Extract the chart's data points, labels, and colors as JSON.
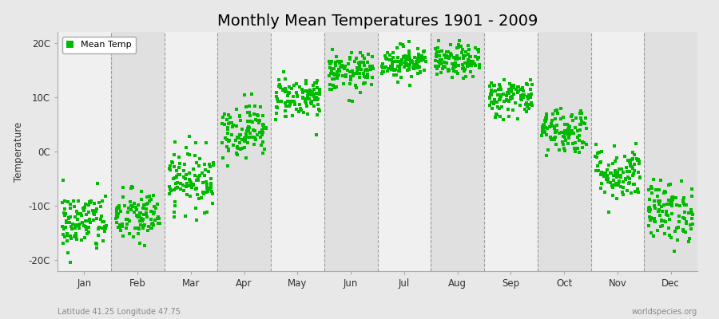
{
  "title": "Monthly Mean Temperatures 1901 - 2009",
  "ylabel": "Temperature",
  "ytick_labels": [
    "20C",
    "10C",
    "0C",
    "-10C",
    "-20C"
  ],
  "ytick_values": [
    20,
    10,
    0,
    -10,
    -20
  ],
  "ylim": [
    -22,
    22
  ],
  "months": [
    "Jan",
    "Feb",
    "Mar",
    "Apr",
    "May",
    "Jun",
    "Jul",
    "Aug",
    "Sep",
    "Oct",
    "Nov",
    "Dec"
  ],
  "month_centers": [
    0.5,
    1.5,
    2.5,
    3.5,
    4.5,
    5.5,
    6.5,
    7.5,
    8.5,
    9.5,
    10.5,
    11.5
  ],
  "xlim": [
    0,
    12
  ],
  "dot_color": "#00bb00",
  "background_color": "#e8e8e8",
  "plot_bg_light": "#f0f0f0",
  "plot_bg_dark": "#e0e0e0",
  "legend_label": "Mean Temp",
  "bottom_left_text": "Latitude 41.25 Longitude 47.75",
  "bottom_right_text": "worldspecies.org",
  "title_fontsize": 14,
  "label_fontsize": 8.5,
  "monthly_mean_temps": [
    -13,
    -12,
    -5,
    4,
    10,
    14.5,
    16.5,
    16.5,
    10,
    4,
    -4,
    -11
  ],
  "monthly_std_temps": [
    2.8,
    2.5,
    2.8,
    2.5,
    2.0,
    1.8,
    1.5,
    1.5,
    1.8,
    2.2,
    2.5,
    2.8
  ],
  "n_years": 109,
  "random_seed": 42
}
